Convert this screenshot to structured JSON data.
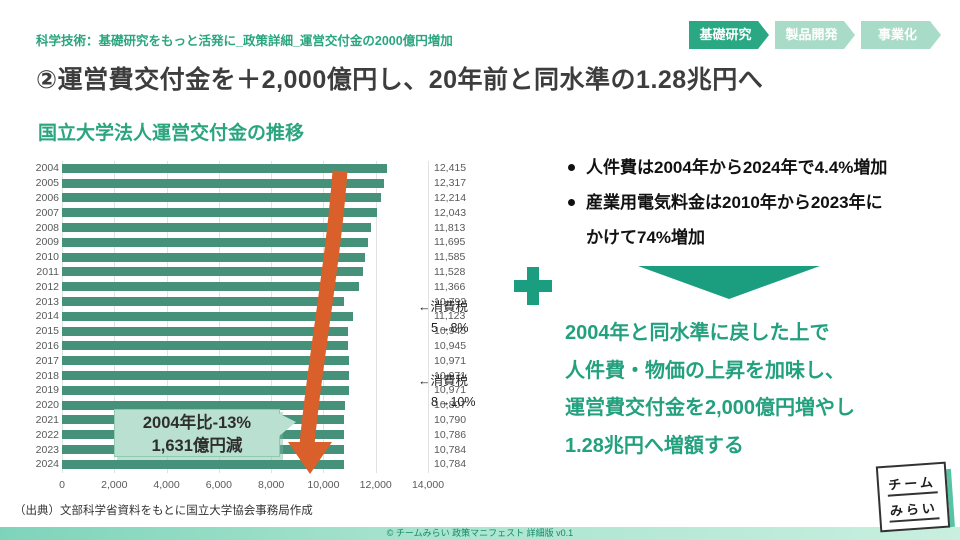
{
  "breadcrumb": "科学技術：基礎研究をもっと活発に_政策詳細_運営交付金の2000億円増加",
  "badges": [
    {
      "label": "基礎研究",
      "active": true
    },
    {
      "label": "製品開発",
      "active": false
    },
    {
      "label": "事業化",
      "active": false
    }
  ],
  "title": "②運営費交付金を＋2,000億円し、20年前と同水準の1.28兆円へ",
  "chart_data": {
    "type": "bar",
    "orientation": "horizontal",
    "title": "国立大学法人運営交付金の推移",
    "categories": [
      "2004",
      "2005",
      "2006",
      "2007",
      "2008",
      "2009",
      "2010",
      "2011",
      "2012",
      "2013",
      "2014",
      "2015",
      "2016",
      "2017",
      "2018",
      "2019",
      "2020",
      "2021",
      "2022",
      "2023",
      "2024"
    ],
    "values": [
      12415,
      12317,
      12214,
      12043,
      11813,
      11695,
      11585,
      11528,
      11366,
      10792,
      11123,
      10945,
      10945,
      10971,
      10971,
      10971,
      10807,
      10790,
      10786,
      10784,
      10784
    ],
    "value_labels": [
      "12,415",
      "12,317",
      "12,214",
      "12,043",
      "11,813",
      "11,695",
      "11,585",
      "11,528",
      "11,366",
      "10,792",
      "11,123",
      "10,945",
      "10,945",
      "10,971",
      "10,971",
      "10,971",
      "10,807",
      "10,790",
      "10,786",
      "10,784",
      "10,784"
    ],
    "x_ticks": [
      "0",
      "2,000",
      "4,000",
      "6,000",
      "8,000",
      "10,000",
      "12,000",
      "14,000"
    ],
    "xlim": [
      0,
      14000
    ],
    "grid": true,
    "annotations": [
      {
        "line1": "←消費税",
        "line2": "5→8%"
      },
      {
        "line1": "←消費税",
        "line2": "8→10%"
      }
    ],
    "callout": {
      "line1": "2004年比-13%",
      "line2": "1,631億円減"
    },
    "source": "（出典）文部科学省資料をもとに国立大学協会事務局作成"
  },
  "right_panel": {
    "bullets": [
      {
        "lines": [
          "人件費は2004年から2024年で4.4%増加"
        ]
      },
      {
        "lines": [
          "産業用電気料金は2010年から2023年に",
          "かけて74%増加"
        ]
      }
    ],
    "conclusion_lines": [
      "2004年と同水準に戻した上で",
      "人件費・物価の上昇を加味し、",
      "運営費交付金を2,000億円増やし",
      "1.28兆円へ増額する"
    ]
  },
  "footer": "© チームみらい 政策マニフェスト 詳細版 v0.1",
  "logo": {
    "line1": "チーム",
    "line2": "みらい"
  },
  "colors": {
    "accent_teal": "#2aa57e",
    "badge_active": "#2aa884",
    "badge_inactive": "#a9dcc8",
    "bar": "#46917a",
    "arrow_orange": "#d9602a",
    "callout_bg": "#b9e0d1",
    "shape_teal": "#1b9e80",
    "footer_bg": "#9ce0c6",
    "title_gray": "#3d3d3d"
  }
}
